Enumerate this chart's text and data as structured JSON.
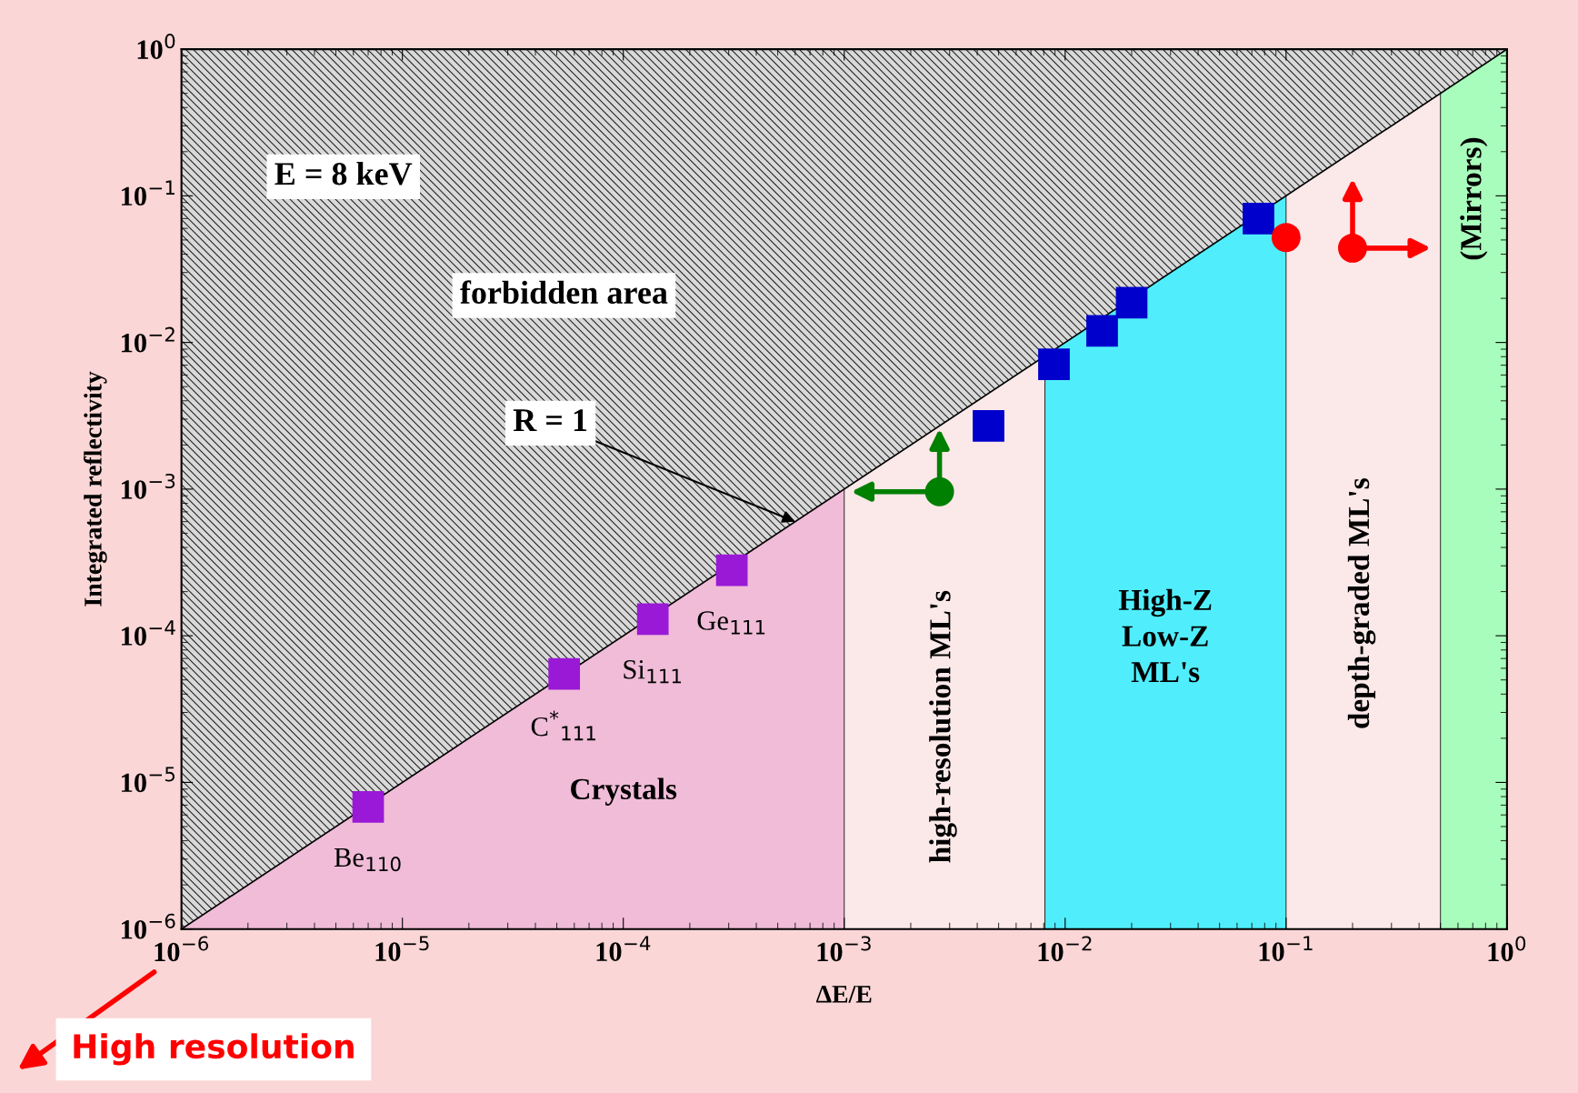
{
  "chart_data": {
    "type": "scatter",
    "xlabel": "ΔE/E",
    "ylabel": "Integrated reflectivity",
    "log": "xy",
    "xlim": [
      1e-06,
      1
    ],
    "ylim": [
      1e-06,
      1
    ],
    "xticks": [
      {
        "value": 1e-06,
        "label": "10$^{−6}$"
      },
      {
        "value": 1e-05,
        "label": "10$^{−5}$"
      },
      {
        "value": 0.0001,
        "label": "10$^{−4}$"
      },
      {
        "value": 0.001,
        "label": "10$^{−3}$"
      },
      {
        "value": 0.01,
        "label": "10$^{−2}$"
      },
      {
        "value": 0.1,
        "label": "10$^{−1}$"
      },
      {
        "value": 1,
        "label": "10$^{0}$"
      }
    ],
    "yticks": [
      {
        "value": 1e-06,
        "label": "10$^{−6}$"
      },
      {
        "value": 1e-05,
        "label": "10$^{−5}$"
      },
      {
        "value": 0.0001,
        "label": "10$^{−4}$"
      },
      {
        "value": 0.001,
        "label": "10$^{−3}$"
      },
      {
        "value": 0.01,
        "label": "10$^{−2}$"
      },
      {
        "value": 0.1,
        "label": "10$^{−1}$"
      },
      {
        "value": 1,
        "label": "10$^{0}$"
      }
    ],
    "bands": [
      {
        "axis": "x",
        "from": 1e-06,
        "to": 0.001,
        "label": "Crystals",
        "color": "#f0bcd8"
      },
      {
        "axis": "x",
        "from": 0.0081,
        "to": 0.1,
        "label": "High-Z\nLow-Z\nML's",
        "color": "#50eefc"
      },
      {
        "axis": "x",
        "from": 0.5,
        "to": 1,
        "label": "(Mirrors)",
        "color": "#a8fcbc"
      }
    ],
    "series": [
      {
        "type": "line",
        "x": [
          1e-06,
          1
        ],
        "values": [
          1e-06,
          1
        ],
        "upper": [
          1,
          1
        ],
        "lower": [
          1e-06,
          1
        ],
        "color": "#000000"
      },
      {
        "marker": "square",
        "color": "#9a19d6",
        "x": [
          7e-06,
          5.4e-05,
          0.000136,
          0.00031
        ],
        "values": [
          6.8e-06,
          5.5e-05,
          0.00013,
          0.00028
        ]
      },
      {
        "marker": "square",
        "color": "#0000cc",
        "x": [
          0.0045,
          0.0089,
          0.0147,
          0.02,
          0.075
        ],
        "values": [
          0.0027,
          0.0071,
          0.012,
          0.0187,
          0.07
        ]
      },
      {
        "marker": "circle",
        "color": "#008000",
        "x": [
          0.0027
        ],
        "values": [
          0.00096
        ]
      },
      {
        "marker": "circle",
        "color": "#ff0000",
        "x": [
          0.1,
          0.2
        ],
        "values": [
          0.052,
          0.044
        ]
      }
    ],
    "annotations": [
      "E = 8 keV",
      "forbidden area",
      {
        "text": "R = 1",
        "x": 0.0006,
        "y": 0.0006
      },
      "High resolution",
      "high-resolution ML's",
      "depth-graded ML's",
      {
        "text": "Be$_{110}$",
        "x": 7e-06,
        "y": 6.8e-06
      },
      {
        "text": "C$^{*}$$_{111}$",
        "x": 5.4e-05,
        "y": 5.5e-05
      },
      {
        "text": "Si$_{111}$",
        "x": 0.000136,
        "y": 0.00013
      },
      {
        "text": "Ge$_{111}$",
        "x": 0.00031,
        "y": 0.00028
      }
    ]
  }
}
